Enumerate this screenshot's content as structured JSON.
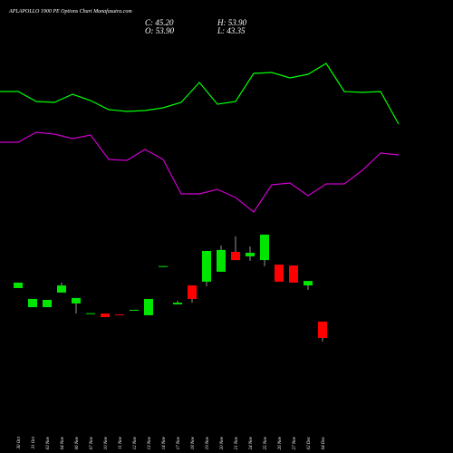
{
  "chart_data": [
    {
      "type": "candlestick",
      "title": "APLAPOLLO 1900 PE Options Chart Munafasutra.com",
      "summary": [
        "C: 45.20",
        "O: 53.90",
        "H: 53.90",
        "L: 43.35"
      ],
      "categories": [
        "30 Oct",
        "31 Oct",
        "03 Nov",
        "04 Nov",
        "06 Nov",
        "07 Nov",
        "10 Nov",
        "11 Nov",
        "12 Nov",
        "13 Nov",
        "14 Nov",
        "17 Nov",
        "18 Nov",
        "19 Nov",
        "20 Nov",
        "21 Nov",
        "24 Nov",
        "25 Nov",
        "26 Nov",
        "27 Nov",
        "02 Dec",
        "04 Dec"
      ],
      "open": [
        71.8,
        61.6,
        61.6,
        69.4,
        63.6,
        58.2,
        58.2,
        57.8,
        60.1,
        57.3,
        83.4,
        63.1,
        73.2,
        75.2,
        80.5,
        91.1,
        88.7,
        86.7,
        84.3,
        83.8,
        73.2,
        53.9
      ],
      "high": [
        74.7,
        66.0,
        65.5,
        74.7,
        66.5,
        58.4,
        58.2,
        57.8,
        60.2,
        66.0,
        83.5,
        65.0,
        73.2,
        91.6,
        94.5,
        99.3,
        94.0,
        100.3,
        84.3,
        83.8,
        75.6,
        53.9
      ],
      "low": [
        71.8,
        61.6,
        61.6,
        69.4,
        58.2,
        58.2,
        56.3,
        57.6,
        60.1,
        57.3,
        83.4,
        63.1,
        64.0,
        72.7,
        80.5,
        86.7,
        86.3,
        83.4,
        75.2,
        74.7,
        70.8,
        43.35
      ],
      "close": [
        74.7,
        66.0,
        65.5,
        73.2,
        66.5,
        58.4,
        56.3,
        57.7,
        60.2,
        66.0,
        83.5,
        64.0,
        66.0,
        91.6,
        92.1,
        86.7,
        90.6,
        100.3,
        75.2,
        74.7,
        75.6,
        45.2
      ],
      "up_color": "#00e600",
      "down_color": "#ff0000",
      "ylim": [
        41.82,
        104.62
      ]
    },
    {
      "type": "line",
      "series": [
        {
          "color": "#00ff00",
          "values": [
            74.5,
            74.5,
            69,
            68.5,
            73,
            69.5,
            64.5,
            63.5,
            64,
            65.5,
            68.5,
            79.5,
            67.5,
            69,
            84.5,
            85,
            82,
            84,
            90,
            74.5,
            74,
            74.5,
            56.5
          ]
        },
        {
          "color": "#cc00cc",
          "values": [
            46.5,
            46.5,
            52,
            51,
            48.5,
            50.5,
            37,
            36.5,
            42.5,
            37,
            18,
            18,
            20.5,
            16,
            8,
            23,
            24,
            17,
            23.5,
            23.5,
            31,
            40.5,
            39.5
          ]
        }
      ],
      "ylim": [
        0,
        100
      ]
    }
  ]
}
